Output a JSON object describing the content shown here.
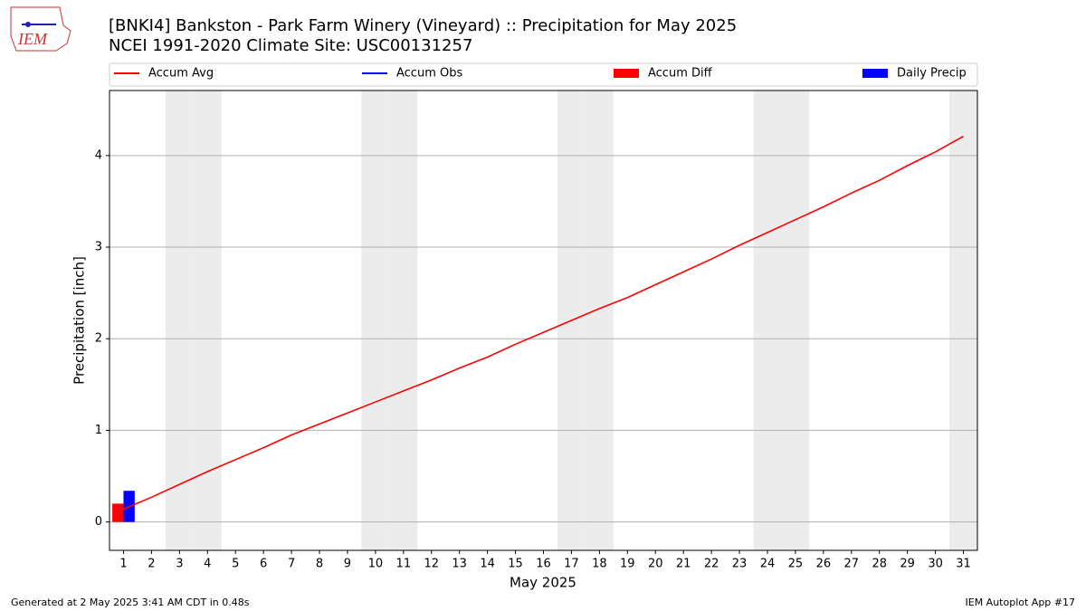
{
  "chart_data": {
    "type": "line",
    "title": "[BNKI4] Bankston - Park Farm Winery (Vineyard) :: Precipitation for May 2025",
    "subtitle": "NCEI 1991-2020 Climate Site: USC00131257",
    "logo": "IEM",
    "xlabel": "May 2025",
    "ylabel": "Precipitation [inch]",
    "footer_left": "Generated at 2 May 2025 3:41 AM CDT in 0.48s",
    "footer_right": "IEM Autoplot App #17",
    "x": [
      1,
      2,
      3,
      4,
      5,
      6,
      7,
      8,
      9,
      10,
      11,
      12,
      13,
      14,
      15,
      16,
      17,
      18,
      19,
      20,
      21,
      22,
      23,
      24,
      25,
      26,
      27,
      28,
      29,
      30,
      31
    ],
    "xlim": [
      0.5,
      31.5
    ],
    "xticks": [
      1,
      2,
      3,
      4,
      5,
      6,
      7,
      8,
      9,
      10,
      11,
      12,
      13,
      14,
      15,
      16,
      17,
      18,
      19,
      20,
      21,
      22,
      23,
      24,
      25,
      26,
      27,
      28,
      29,
      30,
      31
    ],
    "ylim": [
      -0.31,
      4.71
    ],
    "yticks": [
      0,
      1,
      2,
      3,
      4
    ],
    "grid": true,
    "legend": "top",
    "shaded_days": [
      3,
      4,
      10,
      11,
      17,
      18,
      24,
      25,
      31
    ],
    "shade_color": "#ececec",
    "series": [
      {
        "name": "Accum Avg",
        "type": "line",
        "color": "#ff0000",
        "values": [
          0.14,
          0.27,
          0.41,
          0.55,
          0.68,
          0.81,
          0.95,
          1.07,
          1.19,
          1.31,
          1.43,
          1.55,
          1.68,
          1.8,
          1.94,
          2.07,
          2.2,
          2.33,
          2.45,
          2.59,
          2.73,
          2.87,
          3.02,
          3.16,
          3.3,
          3.44,
          3.59,
          3.73,
          3.89,
          4.04,
          4.21
        ]
      },
      {
        "name": "Accum Obs",
        "type": "line",
        "color": "#0000ff",
        "values": [
          0.34,
          null,
          null,
          null,
          null,
          null,
          null,
          null,
          null,
          null,
          null,
          null,
          null,
          null,
          null,
          null,
          null,
          null,
          null,
          null,
          null,
          null,
          null,
          null,
          null,
          null,
          null,
          null,
          null,
          null,
          null
        ]
      },
      {
        "name": "Accum Diff",
        "type": "bar",
        "color": "#ff0000",
        "offset": "left",
        "values": [
          0.2,
          null,
          null,
          null,
          null,
          null,
          null,
          null,
          null,
          null,
          null,
          null,
          null,
          null,
          null,
          null,
          null,
          null,
          null,
          null,
          null,
          null,
          null,
          null,
          null,
          null,
          null,
          null,
          null,
          null,
          null
        ]
      },
      {
        "name": "Daily Precip",
        "type": "bar",
        "color": "#0000ff",
        "offset": "right",
        "values": [
          0.34,
          null,
          null,
          null,
          null,
          null,
          null,
          null,
          null,
          null,
          null,
          null,
          null,
          null,
          null,
          null,
          null,
          null,
          null,
          null,
          null,
          null,
          null,
          null,
          null,
          null,
          null,
          null,
          null,
          null,
          null
        ]
      }
    ]
  }
}
